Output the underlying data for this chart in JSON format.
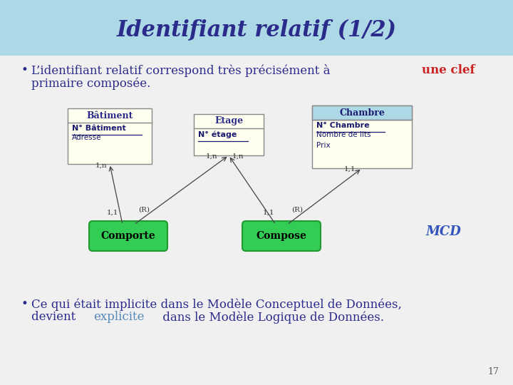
{
  "title": "Identifiant relatif (1/2)",
  "title_color": "#2b2b8b",
  "title_bg": "#add8e6",
  "bg_color": "#f0f0f0",
  "bullet_text_color": "#2b2b8b",
  "highlight_color": "#cc2222",
  "bullet2_explicit_color": "#5588bb",
  "page_number": "17",
  "entity_bg": "#fffff0",
  "entity_border": "#888888",
  "chambre_header_bg": "#add8e6",
  "relation_bg": "#33cc55",
  "relation_border": "#229933",
  "mcd_color": "#3355bb",
  "batiment_title": "Bâtiment",
  "batiment_pk": "N° Bâtiment",
  "batiment_attr": "Adresse",
  "etage_title": "Etage",
  "etage_pk": "N° étage",
  "chambre_title": "Chambre",
  "chambre_pk": "N° Chambre",
  "chambre_attr1": "Nombre de lits",
  "chambre_attr2": "Prix",
  "rel1": "Comporte",
  "rel2": "Compose",
  "mcd_label": "MCD",
  "rel_label": "(R)"
}
